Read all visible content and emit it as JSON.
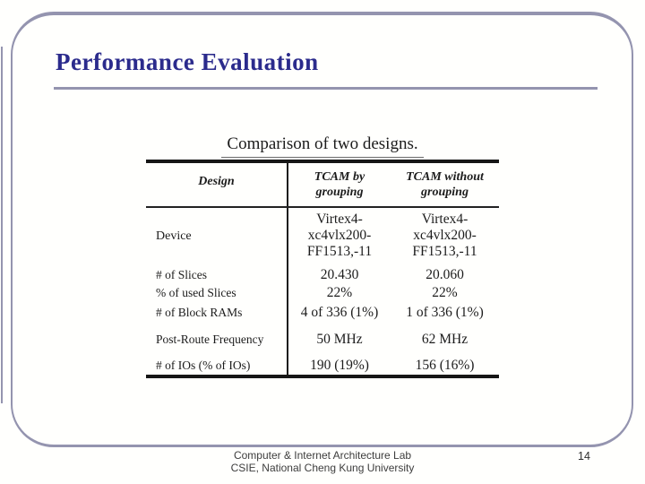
{
  "slide": {
    "title": "Performance Evaluation",
    "footer": {
      "line1": "Computer & Internet Architecture Lab",
      "line2": "CSIE, National Cheng Kung University",
      "page_number": "14"
    }
  },
  "table": {
    "caption": "Comparison of two designs.",
    "columns": {
      "design": "Design",
      "tcam_by": "TCAM by\ngrouping",
      "tcam_without": "TCAM without\ngrouping"
    },
    "rows": [
      {
        "label": "Device",
        "tcam_by": "Virtex4-\nxc4vlx200-\nFF1513,-11",
        "tcam_without": "Virtex4-\nxc4vlx200-\nFF1513,-11"
      },
      {
        "label": "# of Slices",
        "tcam_by": "20.430",
        "tcam_without": "20.060"
      },
      {
        "label": "% of used Slices",
        "tcam_by": "22%",
        "tcam_without": "22%"
      },
      {
        "label": "# of Block RAMs",
        "tcam_by": "4 of 336 (1%)",
        "tcam_without": "1 of 336 (1%)"
      },
      {
        "label": "Post-Route Frequency",
        "tcam_by": "50 MHz",
        "tcam_without": "62 MHz"
      },
      {
        "label": "# of IOs (% of IOs)",
        "tcam_by": "190 (19%)",
        "tcam_without": "156 (16%)"
      }
    ]
  },
  "colors": {
    "title_text": "#2b2b8c",
    "accent_line": "#9494af",
    "table_ink": "#1c1c1c",
    "footer_text": "#3d3d3d"
  }
}
